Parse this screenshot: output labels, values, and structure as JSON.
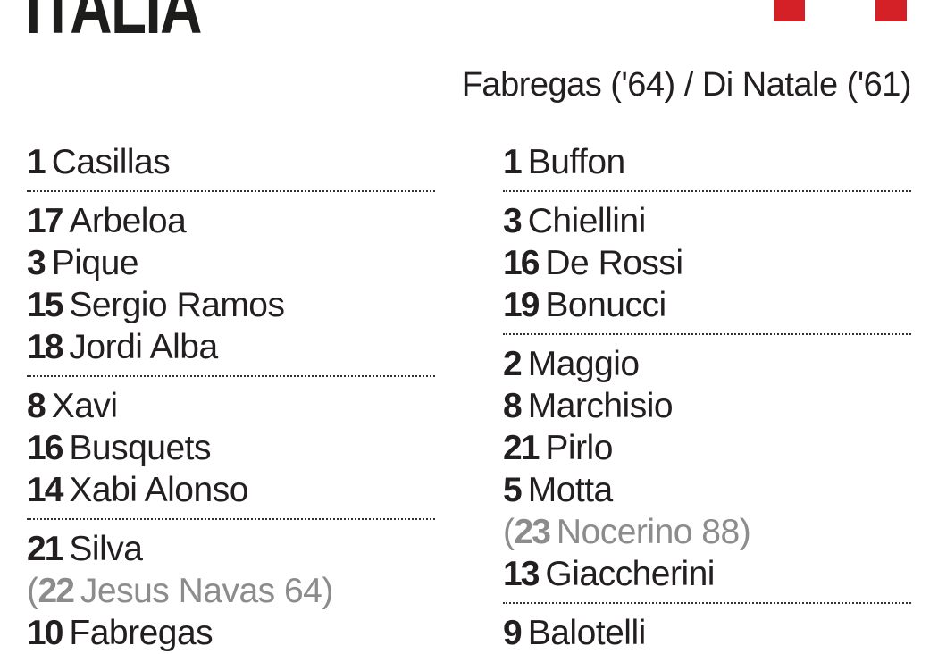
{
  "header": {
    "team_title": "ITALIA",
    "flag_color": "#d42027",
    "scorers": "Fabregas ('64) / Di Natale ('61)"
  },
  "spain": {
    "groups": [
      [
        {
          "number": "1",
          "name": "Casillas"
        }
      ],
      [
        {
          "number": "17",
          "name": "Arbeloa"
        },
        {
          "number": "3",
          "name": "Pique"
        },
        {
          "number": "15",
          "name": "Sergio Ramos"
        },
        {
          "number": "18",
          "name": "Jordi Alba"
        }
      ],
      [
        {
          "number": "8",
          "name": "Xavi"
        },
        {
          "number": "16",
          "name": "Busquets"
        },
        {
          "number": "14",
          "name": "Xabi Alonso"
        }
      ],
      [
        {
          "number": "21",
          "name": "Silva"
        },
        {
          "number": "22",
          "name": "Jesus Navas 64",
          "substitute": true
        },
        {
          "number": "10",
          "name": "Fabregas"
        }
      ]
    ]
  },
  "italy": {
    "groups": [
      [
        {
          "number": "1",
          "name": "Buffon"
        }
      ],
      [
        {
          "number": "3",
          "name": "Chiellini"
        },
        {
          "number": "16",
          "name": "De Rossi"
        },
        {
          "number": "19",
          "name": "Bonucci"
        }
      ],
      [
        {
          "number": "2",
          "name": "Maggio"
        },
        {
          "number": "8",
          "name": "Marchisio"
        },
        {
          "number": "21",
          "name": "Pirlo"
        },
        {
          "number": "5",
          "name": "Motta"
        },
        {
          "number": "23",
          "name": "Nocerino 88",
          "substitute": true
        },
        {
          "number": "13",
          "name": "Giaccherini"
        }
      ],
      [
        {
          "number": "9",
          "name": "Balotelli"
        }
      ]
    ]
  }
}
